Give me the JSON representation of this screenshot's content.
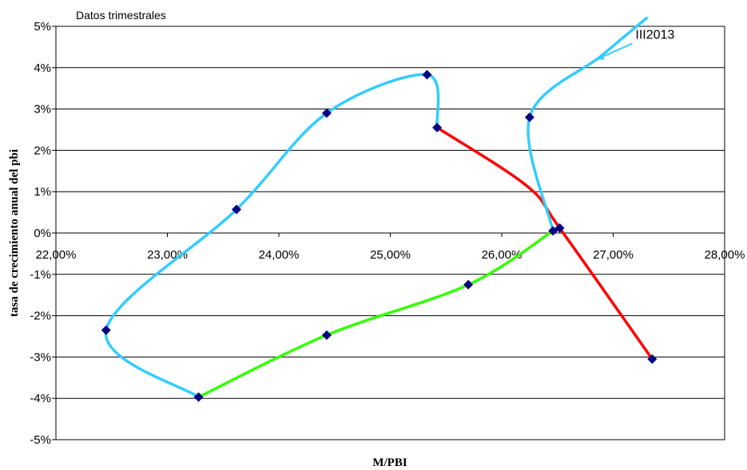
{
  "chart_data": {
    "type": "scatter",
    "title": "",
    "xlabel": "M/PBI",
    "ylabel": "tasa de crecimiento anual del pbi",
    "xlim": [
      22,
      28
    ],
    "ylim": [
      -5,
      5
    ],
    "x_ticks": [
      {
        "value": 22,
        "label": "22,00%"
      },
      {
        "value": 23,
        "label": "23,00%"
      },
      {
        "value": 24,
        "label": "24,00%"
      },
      {
        "value": 25,
        "label": "25,00%"
      },
      {
        "value": 26,
        "label": "26,00%"
      },
      {
        "value": 27,
        "label": "27,00%"
      },
      {
        "value": 28,
        "label": "28,00%"
      }
    ],
    "y_ticks": [
      {
        "value": 5,
        "label": "5%"
      },
      {
        "value": 4,
        "label": "4%"
      },
      {
        "value": 3,
        "label": "3%"
      },
      {
        "value": 2,
        "label": "2%"
      },
      {
        "value": 1,
        "label": "1%"
      },
      {
        "value": 0,
        "label": "0%"
      },
      {
        "value": -1,
        "label": "-1%"
      },
      {
        "value": -2,
        "label": "-2%"
      },
      {
        "value": -3,
        "label": "-3%"
      },
      {
        "value": -4,
        "label": "-4%"
      },
      {
        "value": -5,
        "label": "-5%"
      }
    ],
    "grid": {
      "horizontal": true,
      "vertical": false
    },
    "annotations": [
      {
        "text": "Datos trimestrales",
        "position": "top-left"
      },
      {
        "text": "III2013",
        "x": 27.2,
        "y": 4.7,
        "arrow_to": [
          26.85,
          4.2
        ]
      }
    ],
    "series": [
      {
        "color": "#ff0000",
        "points": [
          [
            25.42,
            2.55
          ],
          [
            26.22,
            1.15
          ],
          [
            26.52,
            0.12
          ],
          [
            27.35,
            -3.05
          ]
        ]
      },
      {
        "color": "#33ff00",
        "points": [
          [
            26.46,
            0.05
          ],
          [
            25.7,
            -1.25
          ],
          [
            24.43,
            -2.47
          ],
          [
            23.28,
            -3.97
          ]
        ]
      },
      {
        "color": "#33ccff",
        "points": [
          [
            23.28,
            -3.97
          ],
          [
            22.45,
            -2.35
          ],
          [
            23.62,
            0.57
          ],
          [
            24.43,
            2.9
          ],
          [
            25.33,
            3.83
          ],
          [
            25.42,
            2.55
          ]
        ]
      },
      {
        "color": "#33ccff",
        "points": [
          [
            26.46,
            0.05
          ],
          [
            26.25,
            2.8
          ],
          [
            26.9,
            4.3
          ],
          [
            27.3,
            5.2
          ]
        ]
      }
    ],
    "markers": {
      "color": "#000080",
      "points": [
        [
          25.42,
          2.55
        ],
        [
          26.52,
          0.12
        ],
        [
          27.35,
          -3.05
        ],
        [
          26.46,
          0.05
        ],
        [
          25.7,
          -1.25
        ],
        [
          24.43,
          -2.47
        ],
        [
          23.28,
          -3.97
        ],
        [
          22.45,
          -2.35
        ],
        [
          23.62,
          0.57
        ],
        [
          24.43,
          2.9
        ],
        [
          25.33,
          3.83
        ],
        [
          26.25,
          2.8
        ]
      ]
    }
  }
}
